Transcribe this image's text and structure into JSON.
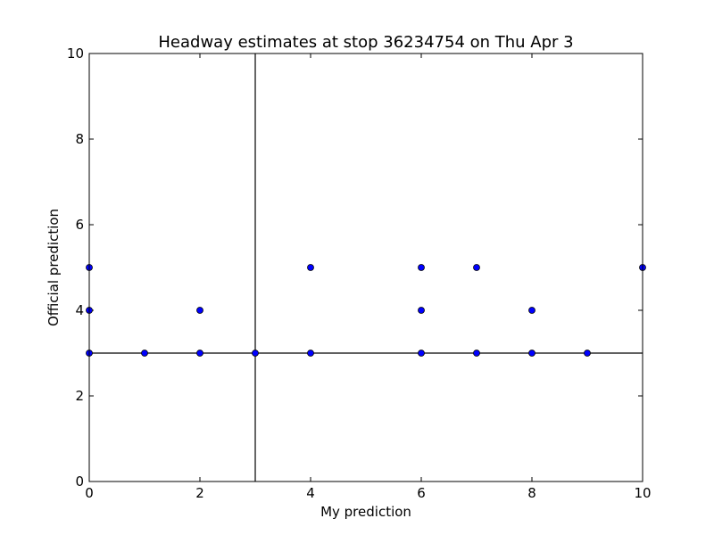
{
  "chart_data": {
    "type": "scatter",
    "title": "Headway estimates at stop 36234754 on Thu Apr 3",
    "xlabel": "My prediction",
    "ylabel": "Official prediction",
    "x": [
      0,
      0,
      0,
      1,
      2,
      2,
      3,
      4,
      4,
      6,
      6,
      6,
      7,
      7,
      8,
      8,
      9,
      10
    ],
    "values": [
      5,
      4,
      3,
      3,
      4,
      3,
      3,
      5,
      3,
      5,
      4,
      3,
      5,
      3,
      4,
      3,
      3,
      5
    ],
    "color": "#0000ff",
    "xlim": [
      0,
      10
    ],
    "ylim": [
      0,
      10
    ],
    "xticks": [
      0,
      2,
      4,
      6,
      8,
      10
    ],
    "yticks": [
      0,
      2,
      4,
      6,
      8,
      10
    ],
    "vlines": [
      3
    ],
    "hlines": [
      3
    ],
    "grid": false
  }
}
